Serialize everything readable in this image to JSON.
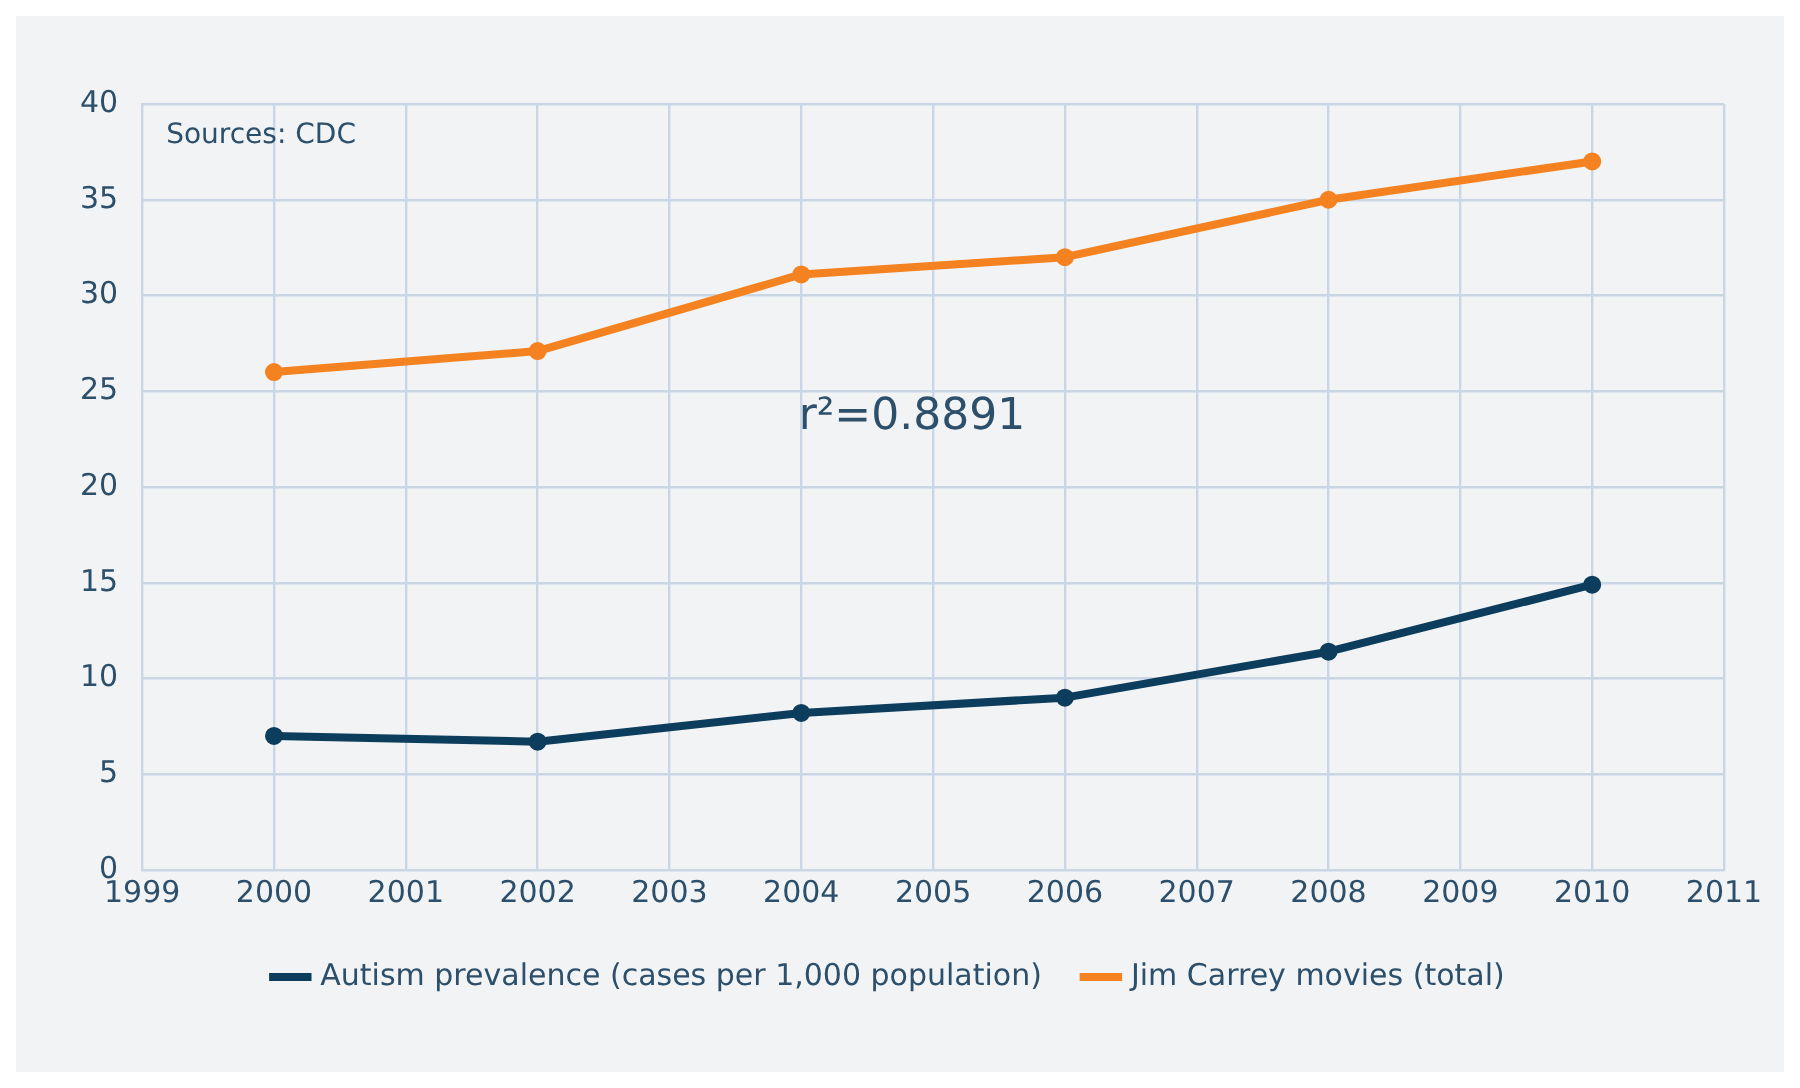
{
  "chart_data": {
    "type": "line",
    "x": [
      2000,
      2002,
      2004,
      2006,
      2008,
      2010
    ],
    "series": [
      {
        "name": "Autism prevalence (cases per 1,000 population)",
        "color": "#0d3d5c",
        "values": [
          7,
          6.7,
          8.2,
          9,
          11.4,
          14.9
        ]
      },
      {
        "name": "Jim Carrey movies (total)",
        "color": "#f58220",
        "values": [
          26,
          27.1,
          31.1,
          32,
          35,
          37
        ]
      }
    ],
    "xlim": [
      1999,
      2011
    ],
    "xticks": [
      1999,
      2000,
      2001,
      2002,
      2003,
      2004,
      2005,
      2006,
      2007,
      2008,
      2009,
      2010,
      2011
    ],
    "ylim": [
      0,
      40
    ],
    "yticks": [
      0,
      5,
      10,
      15,
      20,
      25,
      30,
      35,
      40
    ],
    "annotations": [
      "Sources: CDC",
      "r²=0.8891"
    ],
    "grid": true,
    "legend": "bottom",
    "marker": "circle",
    "line_style": "solid"
  }
}
